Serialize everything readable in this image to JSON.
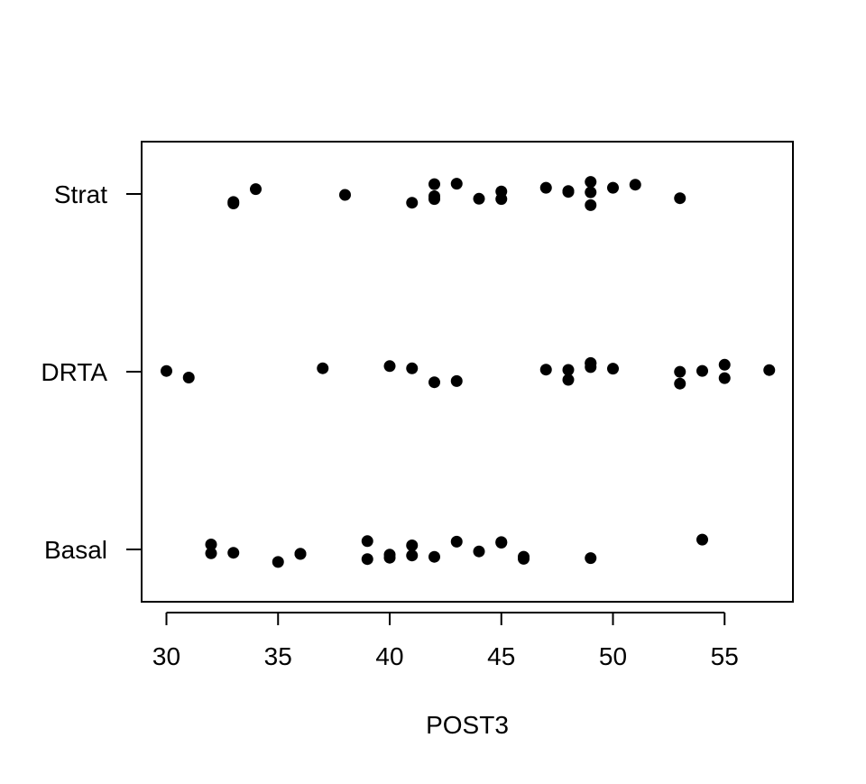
{
  "chart_data": {
    "type": "scatter",
    "title": "",
    "xlabel": "POST3",
    "ylabel": "",
    "xlim": [
      29,
      58
    ],
    "x_ticks": [
      30,
      35,
      40,
      45,
      50,
      55
    ],
    "x_tick_labels": [
      "30",
      "35",
      "40",
      "45",
      "50",
      "55"
    ],
    "categories": [
      "Basal",
      "DRTA",
      "Strat"
    ],
    "grid": false,
    "legend": "none",
    "point_color": "#000000",
    "series": [
      {
        "category": "Basal",
        "x": [
          32,
          32,
          33,
          35,
          36,
          36,
          39,
          39,
          40,
          40,
          41,
          41,
          42,
          43,
          44,
          45,
          45,
          46,
          46,
          49,
          54
        ]
      },
      {
        "category": "DRTA",
        "x": [
          30,
          31,
          37,
          40,
          41,
          42,
          43,
          47,
          48,
          48,
          49,
          49,
          49,
          50,
          53,
          53,
          54,
          55,
          55,
          57
        ]
      },
      {
        "category": "Strat",
        "x": [
          33,
          33,
          34,
          38,
          41,
          42,
          42,
          42,
          43,
          44,
          45,
          45,
          47,
          48,
          48,
          48,
          49,
          49,
          49,
          50,
          51,
          53
        ]
      }
    ]
  }
}
